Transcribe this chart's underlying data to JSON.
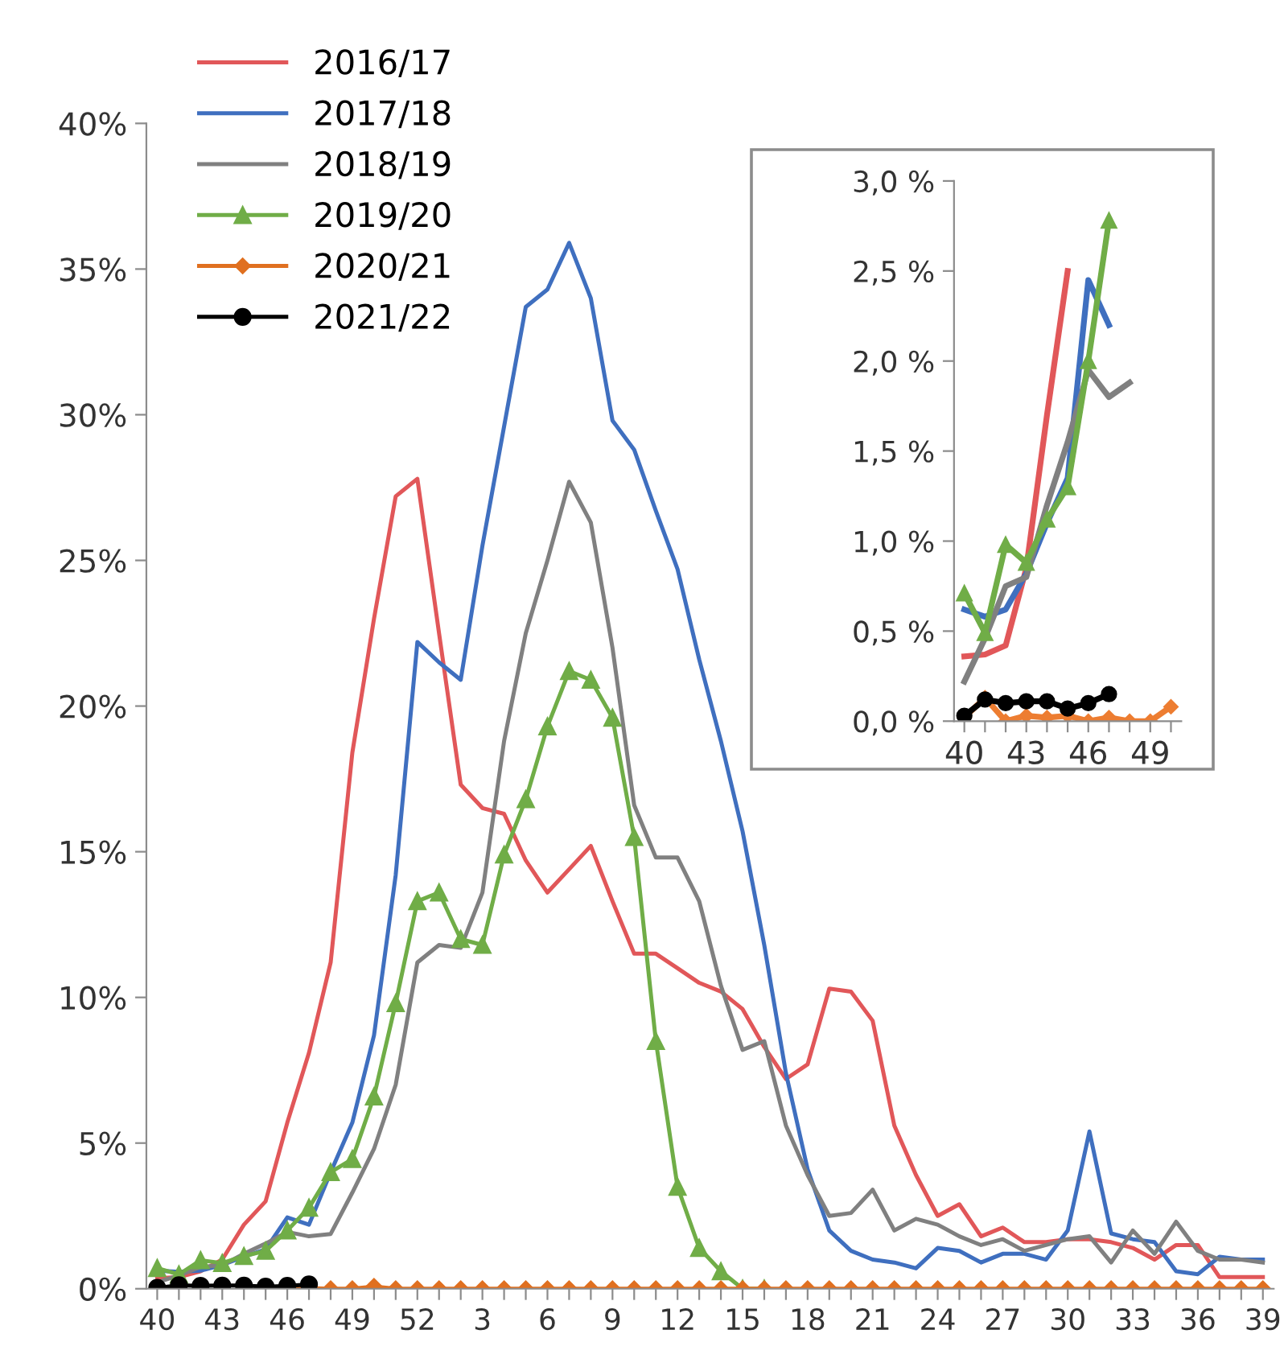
{
  "chart_data": [
    {
      "type": "line",
      "categories": [
        "40",
        null,
        null,
        "43",
        null,
        null,
        "46",
        null,
        null,
        "49",
        null,
        null,
        "52",
        null,
        null,
        "3",
        null,
        null,
        "6",
        null,
        null,
        "9",
        null,
        null,
        "12",
        null,
        null,
        "15",
        null,
        null,
        "18",
        null,
        null,
        "21",
        null,
        null,
        "24",
        null,
        null,
        "27",
        null,
        null,
        "30",
        null,
        null,
        "33",
        null,
        null,
        "36",
        null,
        null,
        "39"
      ],
      "ylim": [
        0,
        40
      ],
      "yticks": [
        {
          "value": 0,
          "label": "0%"
        },
        {
          "value": 5,
          "label": "5%"
        },
        {
          "value": 10,
          "label": "10%"
        },
        {
          "value": 15,
          "label": "15%"
        },
        {
          "value": 20,
          "label": "20%"
        },
        {
          "value": 25,
          "label": "25%"
        },
        {
          "value": 30,
          "label": "30%"
        },
        {
          "value": 35,
          "label": "35%"
        },
        {
          "value": 40,
          "label": "40%"
        }
      ],
      "legend": "top left",
      "grid": false,
      "series": [
        {
          "name": "2016/17",
          "color": "#e15759",
          "marker": "none",
          "values": [
            0.36,
            0.4,
            0.6,
            1.0,
            2.2,
            3.0,
            5.7,
            8.1,
            11.2,
            18.4,
            23,
            27.2,
            27.8,
            22.5,
            17.3,
            16.5,
            16.3,
            14.7,
            13.6,
            14.4,
            15.2,
            13.3,
            11.5,
            11.5,
            11.0,
            10.5,
            10.2,
            9.6,
            8.3,
            7.2,
            7.7,
            10.3,
            10.2,
            9.2,
            5.6,
            3.9,
            2.5,
            2.9,
            1.8,
            2.1,
            1.6,
            1.6,
            1.7,
            1.7,
            1.6,
            1.4,
            1.0,
            1.5,
            1.5,
            0.4,
            0.4,
            0.4
          ]
        },
        {
          "name": "2017/18",
          "color": "#3f6fbf",
          "marker": "none",
          "values": [
            0.62,
            0.58,
            0.62,
            0.82,
            1.1,
            1.35,
            2.45,
            2.2,
            4.0,
            5.7,
            8.7,
            14.2,
            22.2,
            21.5,
            20.9,
            25.5,
            29.6,
            33.7,
            34.3,
            35.9,
            34.0,
            29.8,
            28.8,
            26.7,
            24.7,
            21.6,
            18.8,
            15.7,
            11.8,
            7.4,
            4.1,
            2.0,
            1.3,
            1.0,
            0.9,
            0.7,
            1.4,
            1.3,
            0.9,
            1.2,
            1.2,
            1.0,
            2.0,
            5.4,
            1.9,
            1.7,
            1.6,
            0.6,
            0.5,
            1.1,
            1.0,
            1.0
          ]
        },
        {
          "name": "2018/19",
          "color": "#808080",
          "marker": "none",
          "values": [
            0.22,
            0.46,
            0.75,
            0.8,
            1.2,
            1.55,
            1.95,
            1.8,
            1.88,
            3.3,
            4.8,
            7.0,
            11.2,
            11.8,
            11.7,
            13.6,
            18.8,
            22.5,
            25.0,
            27.7,
            26.3,
            22.0,
            16.6,
            14.8,
            14.8,
            13.3,
            10.4,
            8.2,
            8.5,
            5.6,
            3.9,
            2.5,
            2.6,
            3.4,
            2.0,
            2.4,
            2.2,
            1.8,
            1.5,
            1.7,
            1.3,
            1.5,
            1.7,
            1.8,
            0.9,
            2.0,
            1.2,
            2.3,
            1.3,
            1.0,
            1.0,
            0.9
          ]
        },
        {
          "name": "2019/20",
          "color": "#70ad47",
          "marker": "triangle",
          "values": [
            0.71,
            0.49,
            0.98,
            0.88,
            1.12,
            1.3,
            2.0,
            2.78,
            4.0,
            4.45,
            6.6,
            9.8,
            13.3,
            13.6,
            12.0,
            11.8,
            14.9,
            16.8,
            19.3,
            21.2,
            20.9,
            19.6,
            15.5,
            8.5,
            3.5,
            1.4,
            0.6,
            0,
            0,
            null,
            null,
            null,
            null,
            null,
            null,
            null,
            null,
            null,
            null,
            null,
            null,
            null,
            null,
            null,
            null,
            null,
            null,
            null,
            null,
            null,
            null,
            null
          ]
        },
        {
          "name": "2020/21",
          "color": "#e07020",
          "marker": "diamond",
          "values": [
            null,
            null,
            null,
            null,
            null,
            0.03,
            0.0,
            0.02,
            0.0,
            0.0,
            0.08,
            0,
            0,
            0,
            0,
            0,
            0,
            0,
            0,
            0,
            0,
            0,
            0,
            0,
            0,
            0,
            0,
            0,
            0,
            0,
            0,
            0,
            0,
            0,
            0,
            0,
            0,
            0,
            0,
            0,
            0,
            0,
            0,
            0,
            0,
            0,
            0,
            0,
            0,
            0,
            0,
            0
          ]
        },
        {
          "name": "2021/22",
          "color": "#000000",
          "marker": "circle",
          "values": [
            0.03,
            0.12,
            0.1,
            0.11,
            0.11,
            0.07,
            0.1,
            0.15,
            null,
            null,
            null,
            null,
            null,
            null,
            null,
            null,
            null,
            null,
            null,
            null,
            null,
            null,
            null,
            null,
            null,
            null,
            null,
            null,
            null,
            null,
            null,
            null,
            null,
            null,
            null,
            null,
            null,
            null,
            null,
            null,
            null,
            null,
            null,
            null,
            null,
            null,
            null,
            null,
            null,
            null,
            null,
            null
          ]
        }
      ]
    },
    {
      "type": "line",
      "categories": [
        "40",
        null,
        null,
        "43",
        null,
        null,
        "46",
        null,
        null,
        "49",
        null
      ],
      "ylim": [
        0,
        3.0
      ],
      "yticks": [
        {
          "value": 0,
          "label": "0,0 %"
        },
        {
          "value": 0.5,
          "label": "0,5 %"
        },
        {
          "value": 1.0,
          "label": "1,0 %"
        },
        {
          "value": 1.5,
          "label": "1,5 %"
        },
        {
          "value": 2.0,
          "label": "2,0 %"
        },
        {
          "value": 2.5,
          "label": "2,5 %"
        },
        {
          "value": 3.0,
          "label": "3,0 %"
        }
      ],
      "grid": false,
      "series": [
        {
          "color": "#e15759",
          "marker": "none",
          "values": [
            0.36,
            0.37,
            0.42,
            0.85,
            1.7,
            2.5,
            null,
            null,
            null,
            null,
            null
          ]
        },
        {
          "color": "#3f6fbf",
          "marker": "none",
          "values": [
            0.62,
            0.58,
            0.62,
            0.82,
            1.1,
            1.35,
            2.45,
            2.2,
            null,
            null,
            null
          ]
        },
        {
          "color": "#808080",
          "marker": "none",
          "values": [
            0.22,
            0.46,
            0.75,
            0.8,
            1.2,
            1.55,
            1.95,
            1.8,
            1.88,
            null,
            null
          ]
        },
        {
          "color": "#70ad47",
          "marker": "triangle",
          "values": [
            0.71,
            0.49,
            0.98,
            0.88,
            1.12,
            1.3,
            2.0,
            2.78,
            null,
            null,
            null
          ]
        },
        {
          "color": "#ed7d31",
          "marker": "diamond",
          "values": [
            0.02,
            0.13,
            0.0,
            0.03,
            0.02,
            0.03,
            0.0,
            0.02,
            0.0,
            0.0,
            0.08
          ]
        },
        {
          "color": "#000000",
          "marker": "circle",
          "values": [
            0.03,
            0.12,
            0.1,
            0.11,
            0.11,
            0.07,
            0.1,
            0.15,
            null,
            null,
            null
          ]
        }
      ]
    }
  ]
}
